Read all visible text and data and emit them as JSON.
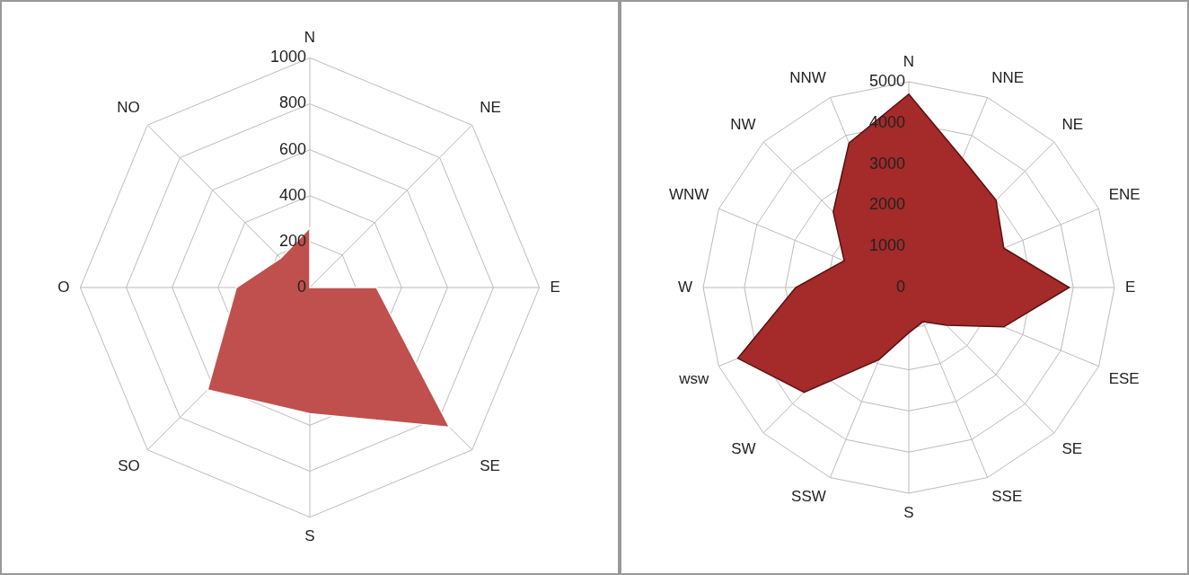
{
  "chart_data": [
    {
      "type": "radar",
      "categories": [
        "N",
        "NE",
        "E",
        "SE",
        "S",
        "SO",
        "O",
        "NO"
      ],
      "series": [
        {
          "color": "#c0504d",
          "values": [
            260,
            0,
            290,
            860,
            550,
            630,
            320,
            180
          ]
        }
      ],
      "ylim": [
        0,
        1000
      ],
      "yticks": [
        0,
        200,
        400,
        600,
        800,
        1000
      ],
      "grid": true,
      "marker": "none"
    },
    {
      "type": "radar",
      "categories": [
        "N",
        "NNE",
        "NE",
        "ENE",
        "E",
        "ESE",
        "SE",
        "SSE",
        "S",
        "SSW",
        "SW",
        "wsw",
        "W",
        "WNW",
        "NW",
        "NNW"
      ],
      "series": [
        {
          "color": "#a52a2a",
          "values": [
            4700,
            3400,
            3000,
            2500,
            3900,
            2500,
            1300,
            900,
            1100,
            1900,
            3600,
            4500,
            2750,
            1700,
            2600,
            3800
          ]
        }
      ],
      "ylim": [
        0,
        5000
      ],
      "yticks": [
        0,
        1000,
        2000,
        3000,
        4000,
        5000
      ],
      "grid": true,
      "marker": "none"
    }
  ]
}
